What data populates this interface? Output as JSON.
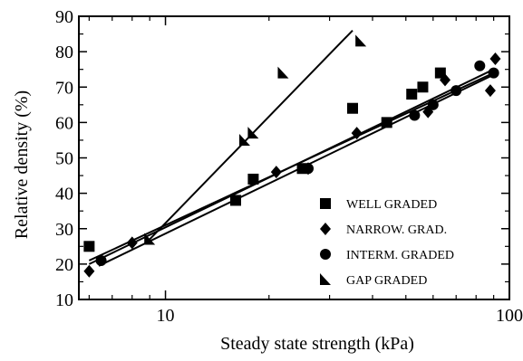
{
  "chart_data": {
    "type": "scatter",
    "title": "",
    "xlabel": "Steady state strength (kPa)",
    "ylabel": "Relative density (%)",
    "x_scale": "log",
    "xlim": [
      5.6,
      100
    ],
    "ylim": [
      10,
      90
    ],
    "x_ticks": [
      10,
      100
    ],
    "x_tick_labels": [
      "10",
      "100"
    ],
    "y_ticks": [
      10,
      20,
      30,
      40,
      50,
      60,
      70,
      80,
      90
    ],
    "y_tick_labels": [
      "10",
      "20",
      "30",
      "40",
      "50",
      "60",
      "70",
      "80",
      "90"
    ],
    "grid": false,
    "legend_position": "bottom-right",
    "series": [
      {
        "name": "WELL GRADED",
        "marker": "square",
        "points": [
          [
            6,
            25
          ],
          [
            16,
            38
          ],
          [
            18,
            44
          ],
          [
            25,
            47
          ],
          [
            35,
            64
          ],
          [
            44,
            60
          ],
          [
            52,
            68
          ],
          [
            56,
            70
          ],
          [
            63,
            74
          ]
        ],
        "fit": [
          [
            6,
            21
          ],
          [
            90,
            74
          ]
        ]
      },
      {
        "name": "NARROW. GRAD.",
        "marker": "diamond",
        "points": [
          [
            6,
            18
          ],
          [
            8,
            26
          ],
          [
            21,
            46
          ],
          [
            26,
            47
          ],
          [
            36,
            57
          ],
          [
            58,
            63
          ],
          [
            65,
            72
          ],
          [
            88,
            69
          ],
          [
            91,
            78
          ]
        ],
        "fit": [
          [
            6,
            20
          ],
          [
            90,
            75
          ]
        ]
      },
      {
        "name": "INTERM. GRADED",
        "marker": "circle",
        "points": [
          [
            6.5,
            21
          ],
          [
            26,
            47
          ],
          [
            53,
            62
          ],
          [
            60,
            65
          ],
          [
            70,
            69
          ],
          [
            82,
            76
          ],
          [
            90,
            74
          ]
        ],
        "fit": [
          [
            6.4,
            19.5
          ],
          [
            90,
            73.5
          ]
        ]
      },
      {
        "name": "GAP GRADED",
        "marker": "triangle",
        "points": [
          [
            9,
            27
          ],
          [
            17,
            55
          ],
          [
            18,
            57
          ],
          [
            22,
            74
          ],
          [
            37,
            83
          ]
        ],
        "fit": [
          [
            9,
            27
          ],
          [
            35,
            86
          ]
        ]
      }
    ]
  }
}
